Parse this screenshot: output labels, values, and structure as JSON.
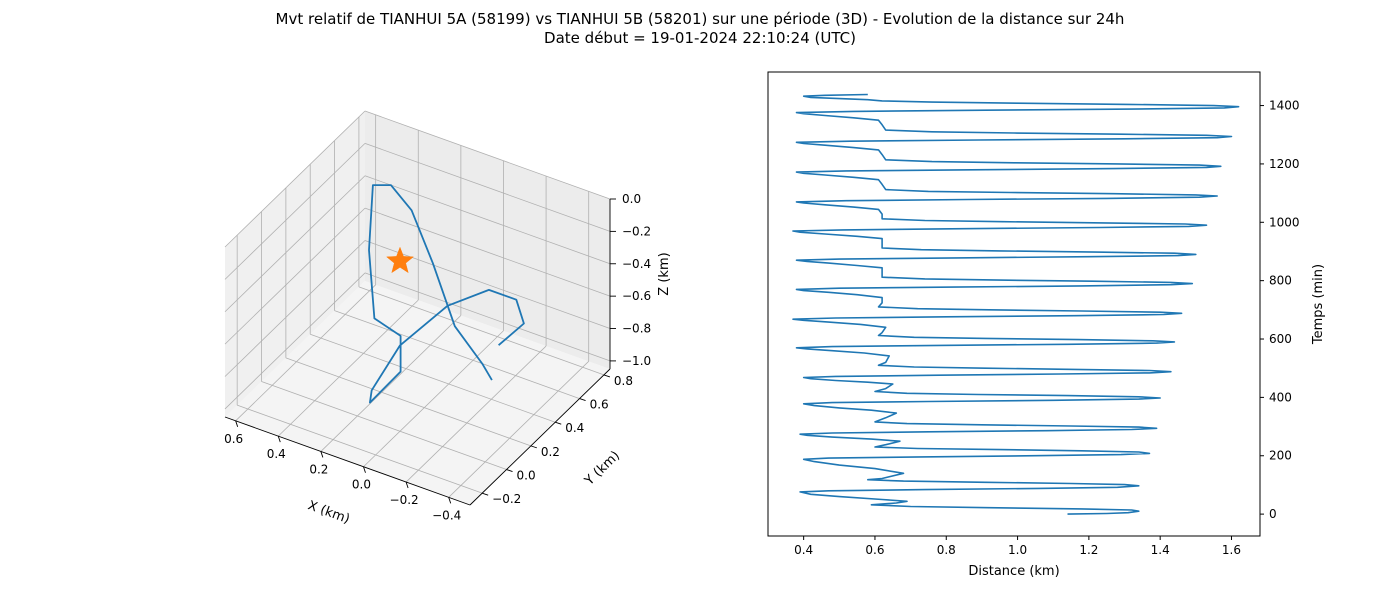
{
  "title_line1": "Mvt relatif de TIANHUI 5A (58199) vs TIANHUI 5B (58201) sur une période (3D) - Evolution de la distance sur 24h",
  "title_line2": "Date début = 19-01-2024 22:10:24 (UTC)",
  "colors": {
    "series": "#1f77b4",
    "marker": "#ff7f0e",
    "pane": "#f2f2f2",
    "grid": "#b0b0b0"
  },
  "chart_data": [
    {
      "type": "line3d",
      "xlabel": "X (km)",
      "ylabel": "Y (km)",
      "zlabel": "Z (km)",
      "x_ticks": [
        "−0.4",
        "−0.2",
        "0.0",
        "0.2",
        "0.4",
        "0.6"
      ],
      "y_ticks": [
        "−0.2",
        "0.0",
        "0.2",
        "0.4",
        "0.6",
        "0.8"
      ],
      "z_ticks": [
        "−1.0",
        "−0.8",
        "−0.6",
        "−0.4",
        "−0.2",
        "0.0"
      ],
      "xlim": [
        -0.5,
        0.65
      ],
      "ylim": [
        -0.3,
        0.85
      ],
      "zlim": [
        -1.05,
        0.0
      ],
      "grid": true,
      "marker": {
        "symbol": "star",
        "x": 0.0,
        "y": 0.0,
        "z": 0.0
      },
      "series": [
        {
          "points": [
            [
              -0.28,
              0.32,
              -0.62
            ],
            [
              -0.33,
              0.44,
              -0.55
            ],
            [
              -0.26,
              0.5,
              -0.48
            ],
            [
              -0.12,
              0.52,
              -0.5
            ],
            [
              0.04,
              0.46,
              -0.63
            ],
            [
              0.16,
              0.28,
              -0.8
            ],
            [
              0.19,
              0.1,
              -0.96
            ],
            [
              0.17,
              0.05,
              -0.99
            ],
            [
              0.1,
              0.18,
              -0.86
            ],
            [
              0.18,
              0.32,
              -0.78
            ],
            [
              0.32,
              0.35,
              -0.76
            ],
            [
              0.46,
              0.55,
              -0.55
            ],
            [
              0.55,
              0.74,
              -0.33
            ],
            [
              0.5,
              0.8,
              -0.35
            ],
            [
              0.38,
              0.76,
              -0.42
            ],
            [
              0.2,
              0.62,
              -0.56
            ],
            [
              0.0,
              0.45,
              -0.73
            ],
            [
              -0.18,
              0.36,
              -0.81
            ],
            [
              -0.26,
              0.3,
              -0.83
            ]
          ]
        }
      ]
    },
    {
      "type": "line",
      "xlabel": "Distance (km)",
      "ylabel": "Temps (min)",
      "xlim": [
        0.3,
        1.68
      ],
      "ylim": [
        -75,
        1515
      ],
      "x_ticks": [
        0.4,
        0.6,
        0.8,
        1.0,
        1.2,
        1.4,
        1.6
      ],
      "y_ticks": [
        0,
        200,
        400,
        600,
        800,
        1000,
        1200,
        1400
      ],
      "y_axis_side": "right",
      "grid": false,
      "series": [
        {
          "points": [
            [
              1.14,
              0
            ],
            [
              1.25,
              2
            ],
            [
              1.31,
              5
            ],
            [
              1.34,
              10
            ],
            [
              1.32,
              14
            ],
            [
              1.18,
              18
            ],
            [
              0.92,
              22
            ],
            [
              0.7,
              26
            ],
            [
              0.59,
              32
            ],
            [
              0.66,
              38
            ],
            [
              0.69,
              44
            ],
            [
              0.62,
              50
            ],
            [
              0.5,
              60
            ],
            [
              0.42,
              68
            ],
            [
              0.39,
              76
            ],
            [
              0.47,
              80
            ],
            [
              0.74,
              84
            ],
            [
              1.06,
              88
            ],
            [
              1.28,
              92
            ],
            [
              1.34,
              97
            ],
            [
              1.3,
              101
            ],
            [
              1.15,
              105
            ],
            [
              0.91,
              109
            ],
            [
              0.68,
              113
            ],
            [
              0.58,
              118
            ],
            [
              0.62,
              122
            ],
            [
              0.68,
              140
            ],
            [
              0.6,
              156
            ],
            [
              0.5,
              168
            ],
            [
              0.43,
              180
            ],
            [
              0.4,
              188
            ],
            [
              0.47,
              192
            ],
            [
              0.73,
              196
            ],
            [
              1.05,
              200
            ],
            [
              1.29,
              204
            ],
            [
              1.37,
              208
            ],
            [
              1.34,
              213
            ],
            [
              1.18,
              217
            ],
            [
              0.95,
              221
            ],
            [
              0.72,
              225
            ],
            [
              0.6,
              230
            ],
            [
              0.63,
              238
            ],
            [
              0.67,
              250
            ],
            [
              0.59,
              257
            ],
            [
              0.48,
              264
            ],
            [
              0.41,
              270
            ],
            [
              0.39,
              274
            ],
            [
              0.48,
              278
            ],
            [
              0.75,
              282
            ],
            [
              1.08,
              286
            ],
            [
              1.32,
              290
            ],
            [
              1.39,
              294
            ],
            [
              1.34,
              298
            ],
            [
              1.15,
              302
            ],
            [
              0.9,
              306
            ],
            [
              0.69,
              310
            ],
            [
              0.6,
              316
            ],
            [
              0.63,
              330
            ],
            [
              0.66,
              346
            ],
            [
              0.59,
              356
            ],
            [
              0.5,
              364
            ],
            [
              0.43,
              372
            ],
            [
              0.4,
              378
            ],
            [
              0.48,
              382
            ],
            [
              0.75,
              386
            ],
            [
              1.1,
              390
            ],
            [
              1.34,
              394
            ],
            [
              1.4,
              398
            ],
            [
              1.34,
              402
            ],
            [
              1.14,
              406
            ],
            [
              0.89,
              410
            ],
            [
              0.69,
              414
            ],
            [
              0.6,
              420
            ],
            [
              0.63,
              430
            ],
            [
              0.65,
              446
            ],
            [
              0.58,
              452
            ],
            [
              0.49,
              458
            ],
            [
              0.42,
              464
            ],
            [
              0.4,
              468
            ],
            [
              0.49,
              472
            ],
            [
              0.78,
              476
            ],
            [
              1.12,
              480
            ],
            [
              1.37,
              484
            ],
            [
              1.43,
              488
            ],
            [
              1.37,
              492
            ],
            [
              1.16,
              496
            ],
            [
              0.91,
              500
            ],
            [
              0.71,
              504
            ],
            [
              0.61,
              510
            ],
            [
              0.63,
              520
            ],
            [
              0.64,
              542
            ],
            [
              0.57,
              552
            ],
            [
              0.48,
              560
            ],
            [
              0.41,
              566
            ],
            [
              0.38,
              570
            ],
            [
              0.48,
              574
            ],
            [
              0.78,
              578
            ],
            [
              1.14,
              582
            ],
            [
              1.39,
              586
            ],
            [
              1.44,
              590
            ],
            [
              1.38,
              594
            ],
            [
              1.17,
              598
            ],
            [
              0.91,
              602
            ],
            [
              0.71,
              606
            ],
            [
              0.61,
              612
            ],
            [
              0.62,
              622
            ],
            [
              0.63,
              640
            ],
            [
              0.56,
              650
            ],
            [
              0.47,
              658
            ],
            [
              0.4,
              664
            ],
            [
              0.37,
              668
            ],
            [
              0.49,
              672
            ],
            [
              0.8,
              676
            ],
            [
              1.16,
              680
            ],
            [
              1.41,
              684
            ],
            [
              1.46,
              688
            ],
            [
              1.4,
              692
            ],
            [
              1.18,
              696
            ],
            [
              0.92,
              700
            ],
            [
              0.72,
              704
            ],
            [
              0.61,
              710
            ],
            [
              0.62,
              724
            ],
            [
              0.62,
              742
            ],
            [
              0.55,
              752
            ],
            [
              0.47,
              760
            ],
            [
              0.4,
              766
            ],
            [
              0.38,
              770
            ],
            [
              0.5,
              774
            ],
            [
              0.82,
              778
            ],
            [
              1.18,
              782
            ],
            [
              1.43,
              786
            ],
            [
              1.49,
              790
            ],
            [
              1.43,
              794
            ],
            [
              1.21,
              798
            ],
            [
              0.95,
              802
            ],
            [
              0.74,
              806
            ],
            [
              0.62,
              812
            ],
            [
              0.62,
              826
            ],
            [
              0.62,
              844
            ],
            [
              0.55,
              852
            ],
            [
              0.47,
              860
            ],
            [
              0.41,
              866
            ],
            [
              0.38,
              870
            ],
            [
              0.5,
              874
            ],
            [
              0.83,
              878
            ],
            [
              1.2,
              882
            ],
            [
              1.45,
              886
            ],
            [
              1.5,
              890
            ],
            [
              1.44,
              894
            ],
            [
              1.22,
              898
            ],
            [
              0.95,
              902
            ],
            [
              0.73,
              906
            ],
            [
              0.62,
              912
            ],
            [
              0.62,
              928
            ],
            [
              0.62,
              944
            ],
            [
              0.55,
              952
            ],
            [
              0.46,
              960
            ],
            [
              0.39,
              966
            ],
            [
              0.37,
              970
            ],
            [
              0.51,
              974
            ],
            [
              0.85,
              978
            ],
            [
              1.23,
              982
            ],
            [
              1.48,
              986
            ],
            [
              1.53,
              990
            ],
            [
              1.47,
              994
            ],
            [
              1.24,
              998
            ],
            [
              0.96,
              1002
            ],
            [
              0.74,
              1006
            ],
            [
              0.62,
              1012
            ],
            [
              0.62,
              1028
            ],
            [
              0.61,
              1044
            ],
            [
              0.54,
              1052
            ],
            [
              0.46,
              1060
            ],
            [
              0.4,
              1066
            ],
            [
              0.38,
              1070
            ],
            [
              0.52,
              1074
            ],
            [
              0.86,
              1078
            ],
            [
              1.25,
              1082
            ],
            [
              1.51,
              1086
            ],
            [
              1.56,
              1090
            ],
            [
              1.5,
              1094
            ],
            [
              1.27,
              1098
            ],
            [
              0.98,
              1102
            ],
            [
              0.75,
              1106
            ],
            [
              0.63,
              1112
            ],
            [
              0.62,
              1130
            ],
            [
              0.61,
              1146
            ],
            [
              0.54,
              1154
            ],
            [
              0.46,
              1162
            ],
            [
              0.4,
              1168
            ],
            [
              0.38,
              1172
            ],
            [
              0.52,
              1176
            ],
            [
              0.87,
              1180
            ],
            [
              1.27,
              1184
            ],
            [
              1.53,
              1188
            ],
            [
              1.57,
              1192
            ],
            [
              1.51,
              1196
            ],
            [
              1.28,
              1200
            ],
            [
              0.99,
              1204
            ],
            [
              0.76,
              1208
            ],
            [
              0.63,
              1214
            ],
            [
              0.62,
              1232
            ],
            [
              0.61,
              1248
            ],
            [
              0.54,
              1256
            ],
            [
              0.46,
              1264
            ],
            [
              0.4,
              1270
            ],
            [
              0.38,
              1274
            ],
            [
              0.53,
              1278
            ],
            [
              0.89,
              1282
            ],
            [
              1.3,
              1286
            ],
            [
              1.56,
              1290
            ],
            [
              1.6,
              1294
            ],
            [
              1.53,
              1298
            ],
            [
              1.29,
              1302
            ],
            [
              0.99,
              1306
            ],
            [
              0.76,
              1310
            ],
            [
              0.63,
              1316
            ],
            [
              0.62,
              1334
            ],
            [
              0.61,
              1350
            ],
            [
              0.54,
              1358
            ],
            [
              0.46,
              1366
            ],
            [
              0.4,
              1372
            ],
            [
              0.38,
              1376
            ],
            [
              0.54,
              1380
            ],
            [
              0.91,
              1384
            ],
            [
              1.32,
              1388
            ],
            [
              1.58,
              1392
            ],
            [
              1.62,
              1396
            ],
            [
              1.55,
              1400
            ],
            [
              1.31,
              1404
            ],
            [
              1.0,
              1408
            ],
            [
              0.76,
              1412
            ],
            [
              0.62,
              1416
            ],
            [
              0.58,
              1420
            ],
            [
              0.5,
              1424
            ],
            [
              0.42,
              1428
            ],
            [
              0.4,
              1432
            ],
            [
              0.46,
              1435
            ],
            [
              0.58,
              1438
            ]
          ]
        }
      ]
    }
  ]
}
